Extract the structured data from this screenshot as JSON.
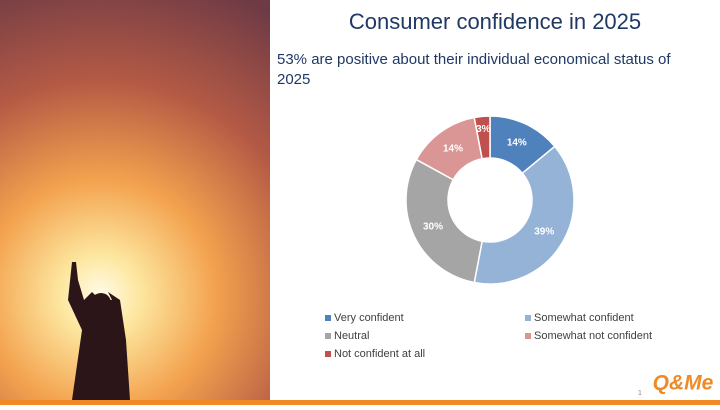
{
  "chart_data": {
    "type": "donut",
    "title": "Consumer confidence in 2025",
    "subtitle": "53% are positive about their individual economical status of 2025",
    "categories": [
      "Very confident",
      "Somewhat confident",
      "Neutral",
      "Somewhat not confident",
      "Not confident at all"
    ],
    "values": [
      14,
      39,
      30,
      14,
      3
    ],
    "value_labels": [
      "14%",
      "39%",
      "30%",
      "14%",
      "3%"
    ],
    "colors": [
      "#4f81bd",
      "#95b3d7",
      "#a5a5a5",
      "#d99694",
      "#c0504d"
    ]
  },
  "slide": {
    "page_number": "1",
    "logo": "Q&Me"
  }
}
